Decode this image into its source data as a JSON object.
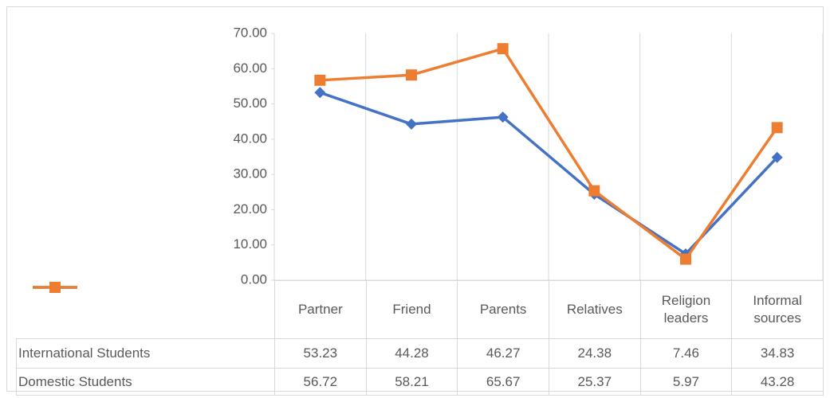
{
  "chart_data": {
    "type": "line",
    "categories": [
      "Partner",
      "Friend",
      "Parents",
      "Relatives",
      "Religion leaders",
      "Informal sources"
    ],
    "series": [
      {
        "name": "International Students",
        "color": "#4472c4",
        "marker": "diamond",
        "values": [
          53.23,
          44.28,
          46.27,
          24.38,
          7.46,
          34.83
        ]
      },
      {
        "name": "Domestic Students",
        "color": "#ed7d31",
        "marker": "square",
        "values": [
          56.72,
          58.21,
          65.67,
          25.37,
          5.97,
          43.28
        ]
      }
    ],
    "ylim": [
      0,
      70
    ],
    "yticks": [
      {
        "value": 0,
        "label": "0.00"
      },
      {
        "value": 10,
        "label": "10.00"
      },
      {
        "value": 20,
        "label": "20.00"
      },
      {
        "value": 30,
        "label": "30.00"
      },
      {
        "value": 40,
        "label": "40.00"
      },
      {
        "value": 50,
        "label": "50.00"
      },
      {
        "value": 60,
        "label": "60.00"
      },
      {
        "value": 70,
        "label": "70.00"
      }
    ],
    "data_table": true
  }
}
